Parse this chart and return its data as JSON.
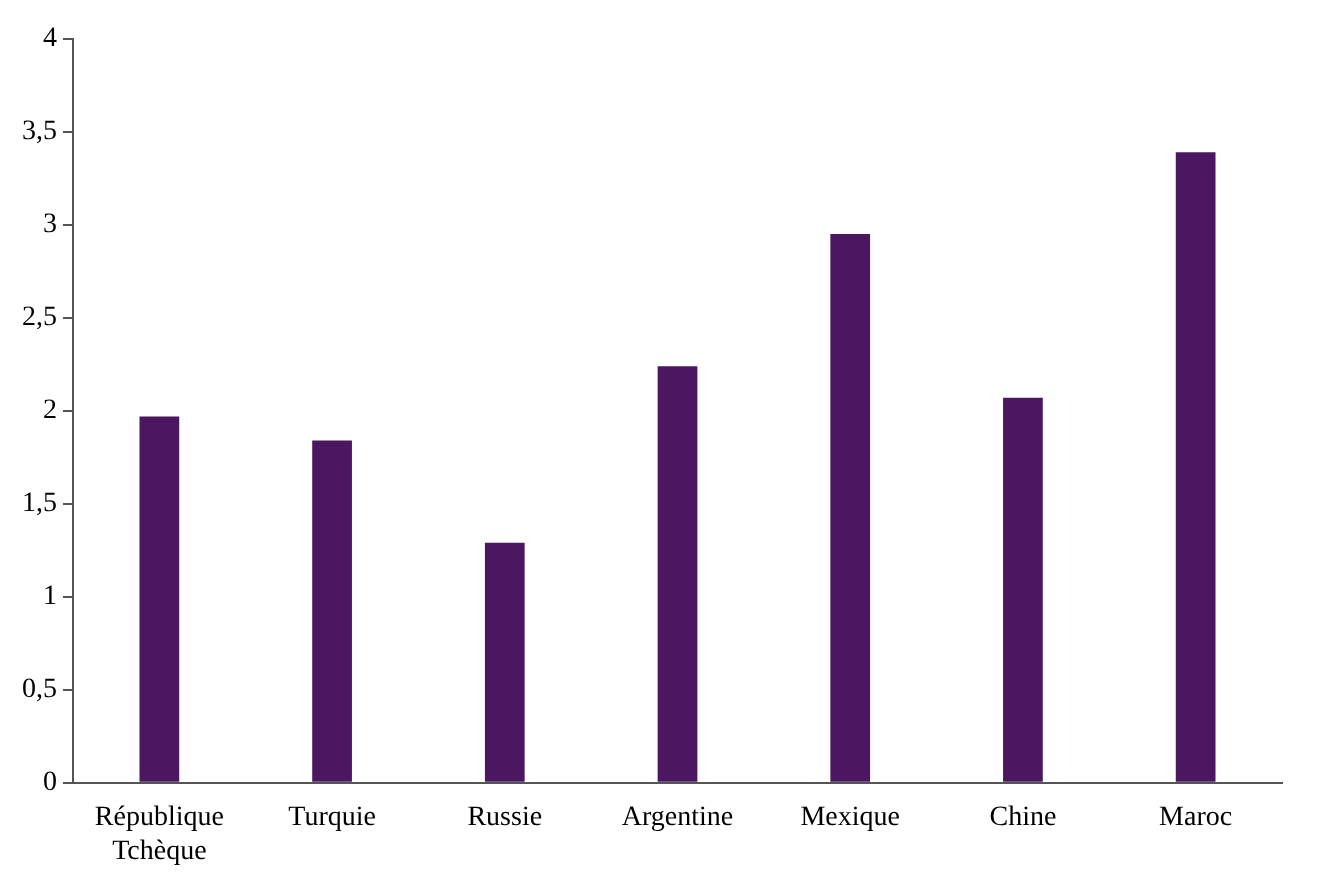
{
  "chart_data": {
    "type": "bar",
    "categories": [
      "République Tchèque",
      "Turquie",
      "Russie",
      "Argentine",
      "Mexique",
      "Chine",
      "Maroc"
    ],
    "values": [
      1.97,
      1.84,
      1.29,
      2.24,
      2.95,
      2.07,
      3.39
    ],
    "color": "#4a1760",
    "ylim": [
      0,
      4
    ],
    "yticks": [
      0,
      {
        "value": 0.5,
        "label": "0,5"
      },
      1,
      {
        "value": 1.5,
        "label": "1,5"
      },
      2,
      {
        "value": 2.5,
        "label": "2,5"
      },
      3,
      {
        "value": 3.5,
        "label": "3,5"
      },
      4
    ],
    "grid": false,
    "legend": false
  }
}
